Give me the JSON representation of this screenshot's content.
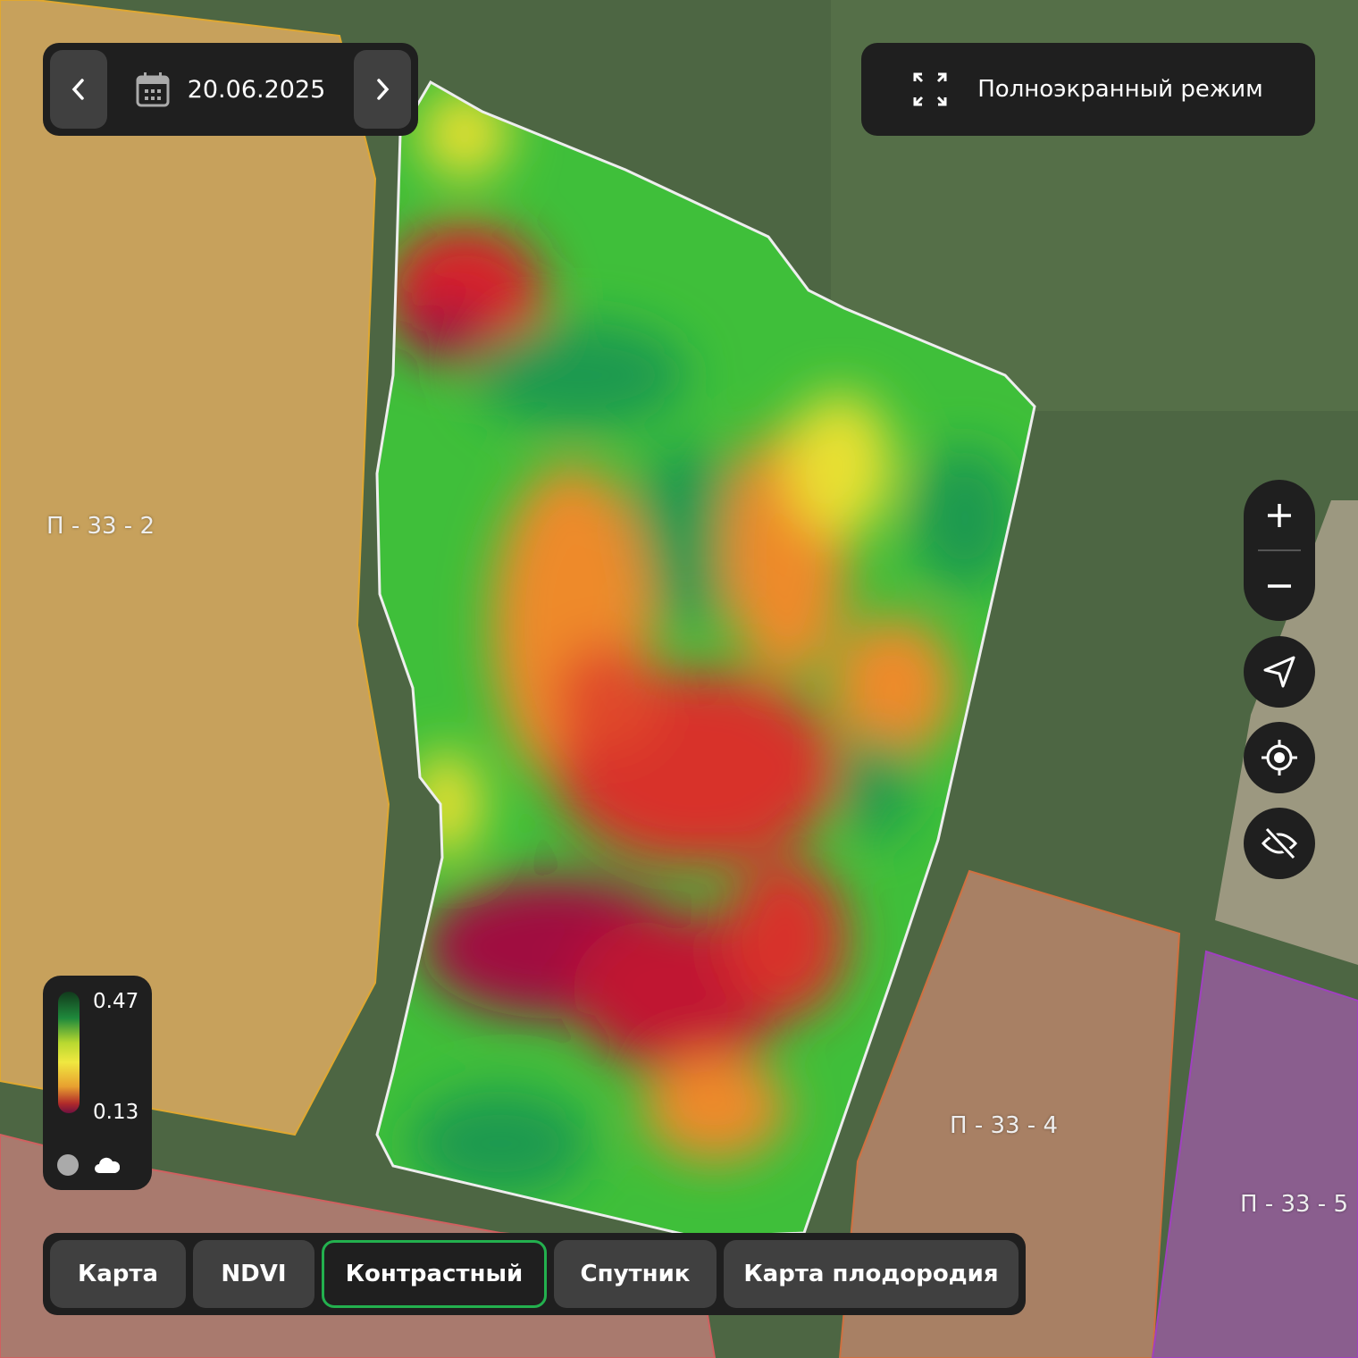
{
  "date_control": {
    "prev_icon": "chevron-left-icon",
    "calendar_icon": "calendar-icon",
    "date": "20.06.2025",
    "next_icon": "chevron-right-icon"
  },
  "fullscreen": {
    "icon": "fullscreen-icon",
    "label": "Полноэкранный режим"
  },
  "map_controls": {
    "zoom_in": "plus-icon",
    "zoom_out": "minus-icon",
    "navigate": "navigation-arrow-icon",
    "locate": "crosshair-icon",
    "hide": "eye-off-icon"
  },
  "legend": {
    "max": "0.47",
    "min": "0.13",
    "icons": [
      "gray-circle-icon",
      "cloud-icon"
    ]
  },
  "field_labels": [
    "П - 33 - 2",
    "П - 33 - 4",
    "П - 33 - 5"
  ],
  "tabs": [
    {
      "label": "Карта",
      "active": false
    },
    {
      "label": "NDVI",
      "active": false
    },
    {
      "label": "Контрастный",
      "active": true
    },
    {
      "label": "Спутник",
      "active": false
    },
    {
      "label": "Карта плодородия",
      "active": false
    }
  ],
  "colors": {
    "accent": "#23b04e",
    "panel": "#1f1f1f",
    "button": "#404040"
  }
}
